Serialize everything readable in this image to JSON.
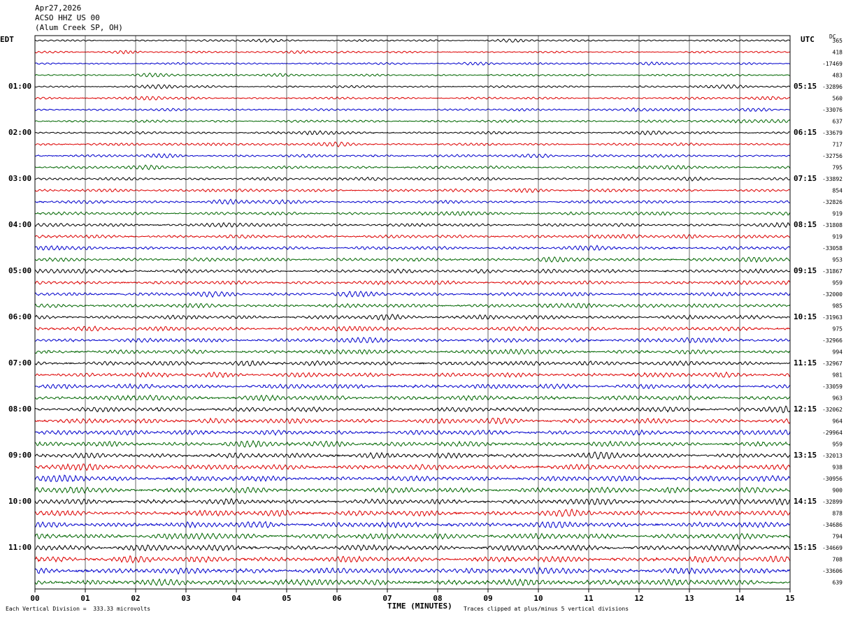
{
  "header": {
    "date": "Apr27,2026",
    "station": "ACSO HHZ US 00",
    "location": "(Alum Creek SP, OH)"
  },
  "left_tz": "EDT",
  "right_tz": "UTC",
  "dc_label": "DC",
  "footer": {
    "scale_note": "Each Vertical Division =  333.33 microvolts",
    "clip_note": "Traces clipped at plus/minus 5 vertical divisions"
  },
  "chart_data": {
    "type": "line",
    "xlabel": "TIME (MINUTES)",
    "x_ticks": [
      "00",
      "01",
      "02",
      "03",
      "04",
      "05",
      "06",
      "07",
      "08",
      "09",
      "10",
      "11",
      "12",
      "13",
      "14",
      "15"
    ],
    "xlim": [
      0,
      15
    ],
    "trace_colors": [
      "#000000",
      "#dd0000",
      "#0000cc",
      "#006600"
    ],
    "left_hour_labels": [
      "01:00",
      "02:00",
      "03:00",
      "04:00",
      "05:00",
      "06:00",
      "07:00",
      "08:00",
      "09:00",
      "10:00",
      "11:00"
    ],
    "right_hour_labels": [
      "05:15",
      "06:15",
      "07:15",
      "08:15",
      "09:15",
      "10:15",
      "11:15",
      "12:15",
      "13:15",
      "14:15",
      "15:15"
    ],
    "dc_offsets": [
      "365",
      "418",
      "-17469",
      "483",
      "-32896",
      "560",
      "-33076",
      "637",
      "-33679",
      "717",
      "-32756",
      "795",
      "-33892",
      "854",
      "-32826",
      "919",
      "-31808",
      "919",
      "-33058",
      "953",
      "-31867",
      "959",
      "-32000",
      "985",
      "-31963",
      "975",
      "-32966",
      "994",
      "-32967",
      "981",
      "-33059",
      "963",
      "-32062",
      "964",
      "-29964",
      "959",
      "-32013",
      "938",
      "-30956",
      "900",
      "-32899",
      "878",
      "-34686",
      "794",
      "-34669",
      "708",
      "-33606",
      "639"
    ]
  }
}
